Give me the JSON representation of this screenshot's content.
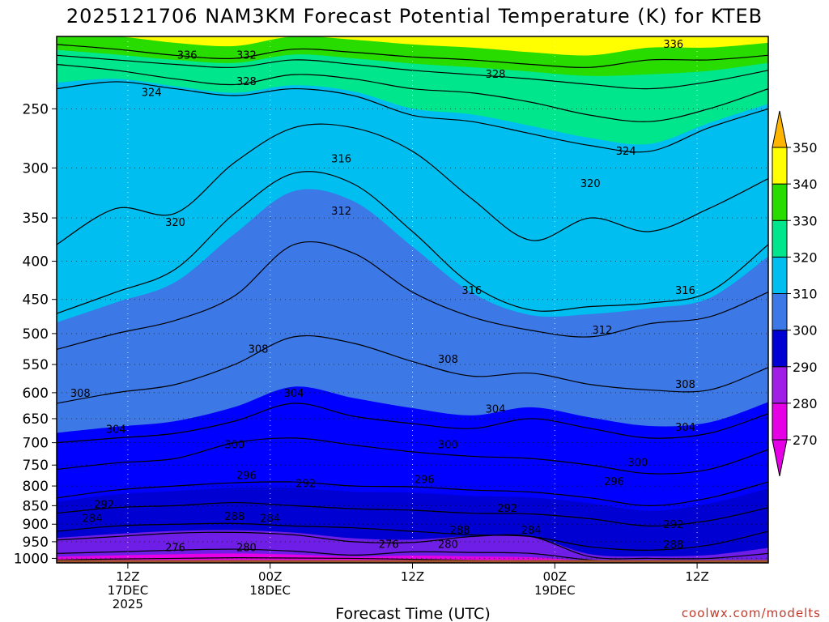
{
  "chart_data": {
    "type": "heatmap",
    "title": "2025121706 NAM3KM Forecast Potential Temperature (K) for KTEB",
    "xlabel": "Forecast Time (UTC)",
    "credit": "coolwx.com/modelts",
    "x_ticks": [
      {
        "hour": 6,
        "lines": [
          "12Z",
          "17DEC",
          "2025"
        ]
      },
      {
        "hour": 18,
        "lines": [
          "00Z",
          "18DEC"
        ]
      },
      {
        "hour": 30,
        "lines": [
          "12Z"
        ]
      },
      {
        "hour": 42,
        "lines": [
          "00Z",
          "19DEC"
        ]
      },
      {
        "hour": 54,
        "lines": [
          "12Z"
        ]
      }
    ],
    "xlim": [
      0,
      60
    ],
    "y_ticks": [
      250,
      300,
      350,
      400,
      450,
      500,
      550,
      600,
      650,
      700,
      750,
      800,
      850,
      900,
      950,
      1000
    ],
    "ylim_hpa": [
      200,
      1014
    ],
    "y_scale": "log-pressure",
    "colorbar": {
      "ticks": [
        270,
        280,
        290,
        300,
        310,
        320,
        330,
        340,
        350
      ],
      "colors": [
        "#e600e6",
        "#a01ee6",
        "#6e1ee6",
        "#0000d2",
        "#0000ff",
        "#3c78e6",
        "#00bef0",
        "#00e68c",
        "#28dc00",
        "#a0ff00",
        "#ffff00",
        "#ffb400"
      ]
    },
    "fill_bands": [
      {
        "theta": 270,
        "color": "#e600e6"
      },
      {
        "theta": 280,
        "color": "#a01ee6"
      },
      {
        "theta": 290,
        "color": "#6e1ee6"
      },
      {
        "theta": 300,
        "color": "#0000d2"
      },
      {
        "theta": 310,
        "color": "#3c78e6"
      },
      {
        "theta": 320,
        "color": "#00bef0"
      },
      {
        "theta": 330,
        "color": "#00e68c"
      },
      {
        "theta": 340,
        "color": "#28dc00"
      },
      {
        "theta": 350,
        "color": "#ffff00"
      }
    ],
    "series": [
      {
        "theta": 276,
        "pressures": [
          1005,
          1002,
          1000,
          998,
          999,
          1000,
          1003,
          1006,
          1008,
          1010,
          1012,
          1012,
          1012
        ]
      },
      {
        "theta": 280,
        "pressures": [
          985,
          980,
          975,
          972,
          978,
          990,
          980,
          982,
          985,
          1005,
          1010,
          1010,
          1010
        ]
      },
      {
        "theta": 284,
        "pressures": [
          945,
          935,
          925,
          923,
          930,
          950,
          952,
          935,
          935,
          995,
          1000,
          1000,
          985
        ]
      },
      {
        "theta": 288,
        "pressures": [
          920,
          905,
          900,
          898,
          905,
          910,
          920,
          930,
          935,
          965,
          975,
          960,
          920
        ]
      },
      {
        "theta": 292,
        "pressures": [
          870,
          855,
          850,
          842,
          850,
          858,
          862,
          870,
          872,
          885,
          905,
          890,
          855
        ]
      },
      {
        "theta": 296,
        "pressures": [
          830,
          810,
          800,
          792,
          790,
          800,
          802,
          810,
          815,
          830,
          850,
          830,
          790
        ]
      },
      {
        "theta": 300,
        "pressures": [
          760,
          745,
          735,
          700,
          690,
          705,
          720,
          730,
          735,
          750,
          770,
          760,
          715
        ]
      },
      {
        "theta": 304,
        "pressures": [
          700,
          690,
          680,
          655,
          620,
          645,
          660,
          670,
          650,
          670,
          690,
          680,
          640
        ]
      },
      {
        "theta": 308,
        "pressures": [
          620,
          600,
          585,
          550,
          505,
          515,
          545,
          570,
          565,
          585,
          595,
          595,
          555
        ]
      },
      {
        "theta": 312,
        "pressures": [
          525,
          500,
          480,
          445,
          380,
          390,
          440,
          475,
          495,
          505,
          485,
          475,
          440
        ]
      },
      {
        "theta": 316,
        "pressures": [
          470,
          440,
          410,
          345,
          305,
          315,
          365,
          430,
          465,
          460,
          455,
          440,
          380
        ]
      },
      {
        "theta": 320,
        "pressures": [
          380,
          340,
          345,
          295,
          265,
          265,
          285,
          330,
          375,
          350,
          365,
          340,
          310
        ]
      },
      {
        "theta": 324,
        "pressures": [
          235,
          230,
          235,
          240,
          235,
          240,
          255,
          260,
          270,
          280,
          285,
          265,
          250
        ]
      },
      {
        "theta": 328,
        "pressures": [
          218,
          222,
          228,
          232,
          225,
          228,
          235,
          238,
          245,
          255,
          260,
          250,
          235
        ]
      },
      {
        "theta": 332,
        "pressures": [
          212,
          215,
          218,
          220,
          215,
          218,
          222,
          225,
          228,
          232,
          235,
          230,
          222
        ]
      },
      {
        "theta": 336,
        "pressures": [
          205,
          208,
          212,
          214,
          208,
          210,
          213,
          215,
          218,
          220,
          215,
          215,
          212
        ]
      }
    ],
    "series_hours": [
      0,
      5,
      10,
      15,
      20,
      25,
      30,
      35,
      40,
      45,
      50,
      55,
      60
    ],
    "contour_labels": [
      {
        "text": "336",
        "hour": 11,
        "hpa": 212
      },
      {
        "text": "332",
        "hour": 16,
        "hpa": 212
      },
      {
        "text": "336",
        "hour": 52,
        "hpa": 205
      },
      {
        "text": "328",
        "hour": 16,
        "hpa": 230
      },
      {
        "text": "328",
        "hour": 37,
        "hpa": 225
      },
      {
        "text": "324",
        "hour": 8,
        "hpa": 238
      },
      {
        "text": "324",
        "hour": 48,
        "hpa": 285
      },
      {
        "text": "320",
        "hour": 10,
        "hpa": 355
      },
      {
        "text": "320",
        "hour": 45,
        "hpa": 315
      },
      {
        "text": "316",
        "hour": 24,
        "hpa": 292
      },
      {
        "text": "316",
        "hour": 35,
        "hpa": 438
      },
      {
        "text": "316",
        "hour": 53,
        "hpa": 438
      },
      {
        "text": "312",
        "hour": 24,
        "hpa": 343
      },
      {
        "text": "312",
        "hour": 46,
        "hpa": 495
      },
      {
        "text": "308",
        "hour": 17,
        "hpa": 525
      },
      {
        "text": "308",
        "hour": 33,
        "hpa": 542
      },
      {
        "text": "308",
        "hour": 53,
        "hpa": 585
      },
      {
        "text": "308",
        "hour": 2,
        "hpa": 602
      },
      {
        "text": "304",
        "hour": 20,
        "hpa": 602
      },
      {
        "text": "304",
        "hour": 37,
        "hpa": 632
      },
      {
        "text": "304",
        "hour": 53,
        "hpa": 668
      },
      {
        "text": "304",
        "hour": 5,
        "hpa": 672
      },
      {
        "text": "300",
        "hour": 15,
        "hpa": 705
      },
      {
        "text": "300",
        "hour": 33,
        "hpa": 705
      },
      {
        "text": "300",
        "hour": 49,
        "hpa": 745
      },
      {
        "text": "296",
        "hour": 16,
        "hpa": 775
      },
      {
        "text": "296",
        "hour": 31,
        "hpa": 785
      },
      {
        "text": "296",
        "hour": 47,
        "hpa": 790
      },
      {
        "text": "292",
        "hour": 21,
        "hpa": 795
      },
      {
        "text": "292",
        "hour": 4,
        "hpa": 848
      },
      {
        "text": "292",
        "hour": 38,
        "hpa": 858
      },
      {
        "text": "292",
        "hour": 52,
        "hpa": 902
      },
      {
        "text": "288",
        "hour": 15,
        "hpa": 880
      },
      {
        "text": "288",
        "hour": 34,
        "hpa": 918
      },
      {
        "text": "288",
        "hour": 52,
        "hpa": 960
      },
      {
        "text": "284",
        "hour": 3,
        "hpa": 885
      },
      {
        "text": "284",
        "hour": 18,
        "hpa": 885
      },
      {
        "text": "284",
        "hour": 40,
        "hpa": 918
      },
      {
        "text": "280",
        "hour": 16,
        "hpa": 968
      },
      {
        "text": "280",
        "hour": 33,
        "hpa": 958
      },
      {
        "text": "276",
        "hour": 10,
        "hpa": 968
      },
      {
        "text": "276",
        "hour": 28,
        "hpa": 958
      }
    ],
    "ground_color": "#a0522d",
    "grid": true
  }
}
